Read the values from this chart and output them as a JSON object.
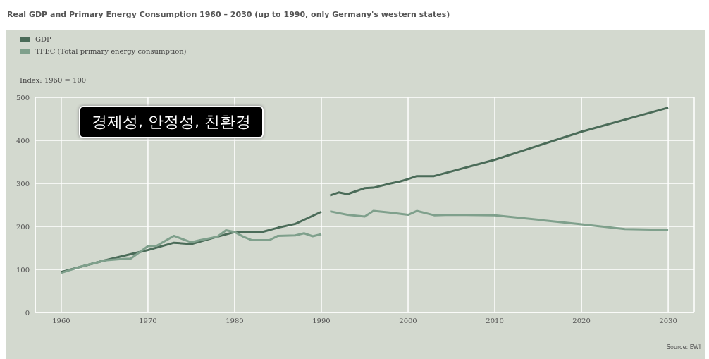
{
  "chart_data": {
    "type": "line",
    "title": "Real GDP and Primary Energy Consumption 1960 – 2030 (up to 1990, only Germany's western states)",
    "ylabel": "Index: 1960 = 100",
    "annotations": [
      "경제성, 안정성, 친환경",
      "Source: EWI"
    ],
    "series": [
      {
        "name": "GDP",
        "color": "#4a6b58",
        "x": [
          1960,
          1965,
          1970,
          1973,
          1975,
          1978,
          1980,
          1983,
          1985,
          1987,
          1990,
          1990.5,
          1991,
          1992,
          1993,
          1995,
          1996,
          1998,
          1999,
          2000,
          2001,
          2003,
          2010,
          2020,
          2030
        ],
        "values": [
          94,
          121,
          145,
          162,
          159,
          176,
          187,
          186,
          197,
          206,
          234,
          null,
          272,
          279,
          275,
          289,
          290,
          300,
          304,
          310,
          317,
          317,
          355,
          420,
          476
        ]
      },
      {
        "name": "TPEC (Total primary energy consumption)",
        "color": "#7fa08c",
        "x": [
          1960,
          1962,
          1965,
          1967,
          1968,
          1970,
          1971,
          1973,
          1975,
          1976,
          1978,
          1979,
          1980,
          1981,
          1982,
          1984,
          1985,
          1987,
          1988,
          1989,
          1990,
          1990.5,
          1991,
          1993,
          1995,
          1996,
          1998,
          2000,
          2001,
          2003,
          2005,
          2010,
          2020,
          2025,
          2030
        ],
        "values": [
          92,
          105,
          121,
          124,
          125,
          154,
          155,
          178,
          163,
          168,
          176,
          191,
          187,
          176,
          168,
          168,
          178,
          179,
          184,
          177,
          182,
          null,
          235,
          227,
          223,
          236,
          232,
          227,
          236,
          226,
          227,
          226,
          205,
          194,
          192
        ]
      }
    ],
    "xlim": [
      1957,
      2033
    ],
    "xticks": [
      1960,
      1970,
      1980,
      1990,
      2000,
      2010,
      2020,
      2030
    ],
    "ylim": [
      0,
      500
    ],
    "yticks": [
      0,
      100,
      200,
      300,
      400,
      500
    ],
    "grid": true,
    "legend": "top left",
    "line_style": "solid",
    "marker": "none"
  }
}
